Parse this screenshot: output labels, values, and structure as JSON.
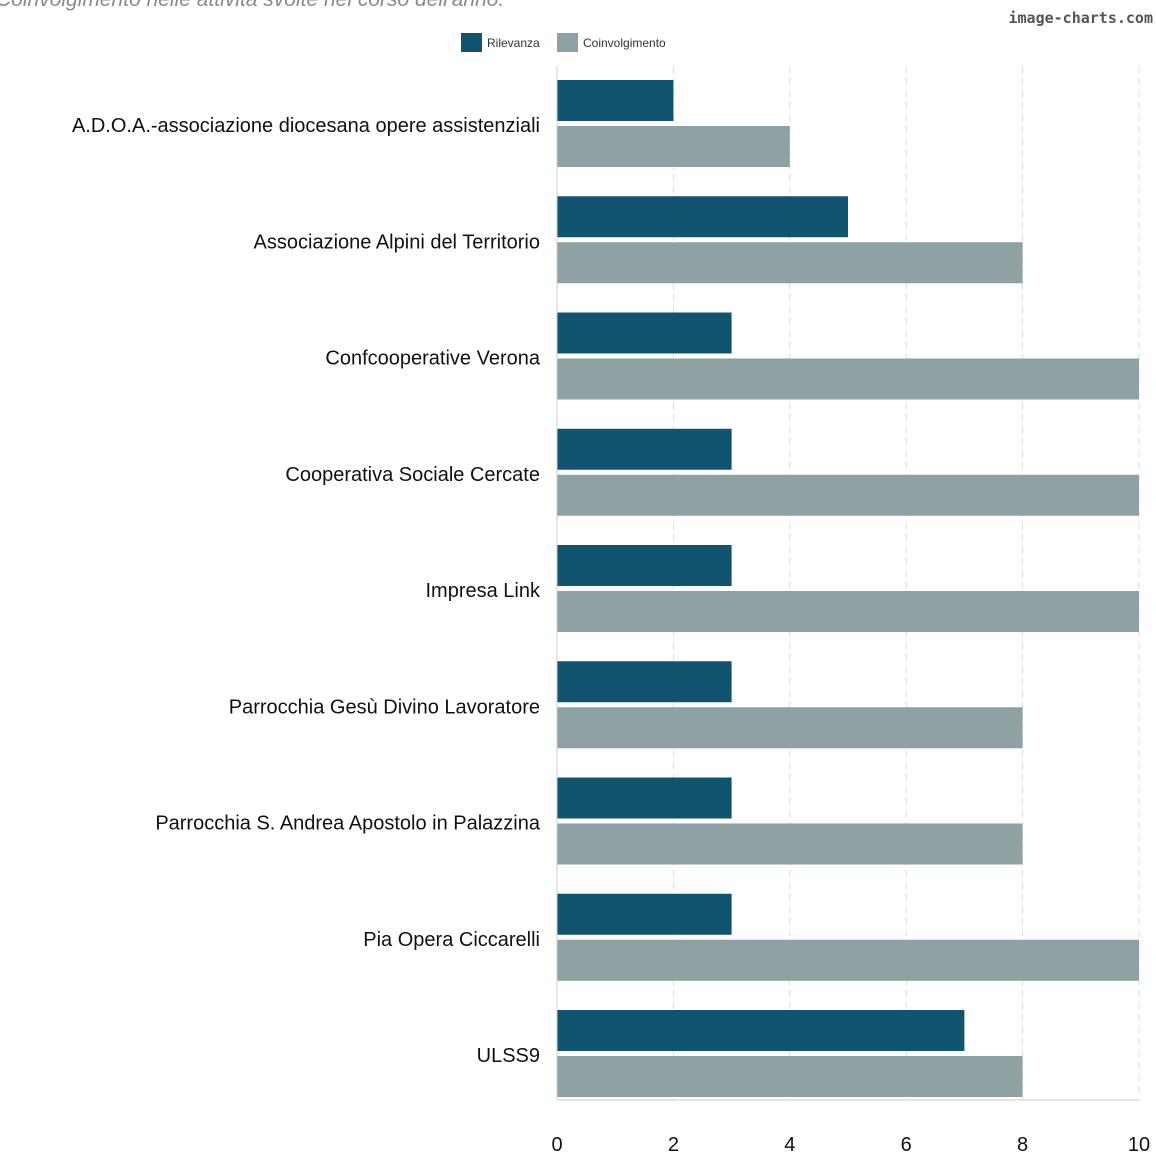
{
  "title": "Coinvolgimento nelle attività svolte nel corso dell'anno.",
  "watermark": "image-charts.com",
  "chart_data": {
    "type": "bar",
    "orientation": "horizontal",
    "title": "",
    "xlabel": "",
    "ylabel": "",
    "categories": [
      "A.D.O.A.-associazione diocesana opere assistenziali",
      "Associazione Alpini del Territorio",
      "Confcooperative Verona",
      "Cooperativa Sociale Cercate",
      "Impresa Link ",
      "Parrocchia Gesù Divino Lavoratore",
      "Parrocchia S. Andrea Apostolo in Palazzina",
      "Pia Opera Ciccarelli",
      "ULSS9"
    ],
    "series": [
      {
        "name": "Rilevanza",
        "color": "#115470",
        "values": [
          2,
          5,
          3,
          3,
          3,
          3,
          3,
          3,
          7
        ]
      },
      {
        "name": "Coinvolgimento",
        "color": "#8ea2a3",
        "values": [
          4,
          8,
          10,
          10,
          10,
          8,
          8,
          10,
          8
        ]
      }
    ],
    "xlim": [
      0,
      10
    ],
    "xticks": [
      0,
      2,
      4,
      6,
      8,
      10
    ],
    "grid": true,
    "legend_position": "top-center"
  }
}
